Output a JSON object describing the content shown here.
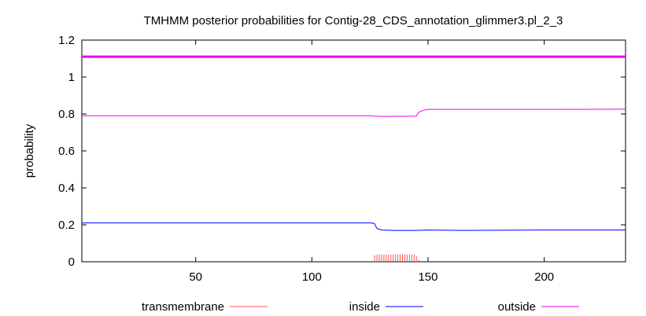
{
  "chart_data": {
    "type": "line",
    "title": "TMHMM posterior probabilities for Contig-28_CDS_annotation_glimmer3.pl_2_3",
    "xlabel": "",
    "ylabel": "probability",
    "xlim": [
      1,
      235
    ],
    "ylim": [
      0,
      1.2
    ],
    "x_ticks": [
      50,
      100,
      150,
      200
    ],
    "y_ticks": [
      0,
      0.2,
      0.4,
      0.6,
      0.8,
      1,
      1.2
    ],
    "y_tick_labels": [
      "0",
      "0.2",
      "0.4",
      "0.6",
      "0.8",
      "1",
      "1.2"
    ],
    "x_tick_labels": [
      "50",
      "100",
      "150",
      "200"
    ],
    "grid": false,
    "legend_position": "bottom",
    "reference_line": {
      "y": 1.11,
      "color": "#ee00ee"
    },
    "series": [
      {
        "name": "transmembrane",
        "color": "#ff5555",
        "style": "impulses",
        "x": [
          127,
          128,
          129,
          130,
          131,
          132,
          133,
          134,
          135,
          136,
          137,
          138,
          139,
          140,
          141,
          142,
          143,
          144,
          145,
          146
        ],
        "values": [
          0.035,
          0.04,
          0.04,
          0.04,
          0.04,
          0.04,
          0.04,
          0.04,
          0.04,
          0.04,
          0.04,
          0.04,
          0.04,
          0.04,
          0.04,
          0.04,
          0.04,
          0.04,
          0.03,
          0.01
        ]
      },
      {
        "name": "inside",
        "color": "#0000ff",
        "style": "line",
        "x": [
          1,
          126,
          127,
          128,
          130,
          135,
          145,
          150,
          165,
          200,
          235
        ],
        "values": [
          0.21,
          0.21,
          0.205,
          0.18,
          0.172,
          0.17,
          0.17,
          0.172,
          0.17,
          0.172,
          0.172
        ]
      },
      {
        "name": "outside",
        "color": "#ee00ee",
        "style": "line",
        "x": [
          1,
          126,
          127,
          130,
          145,
          146,
          148,
          150,
          160,
          200,
          235
        ],
        "values": [
          0.79,
          0.79,
          0.788,
          0.787,
          0.788,
          0.81,
          0.82,
          0.825,
          0.825,
          0.825,
          0.826
        ]
      }
    ]
  }
}
